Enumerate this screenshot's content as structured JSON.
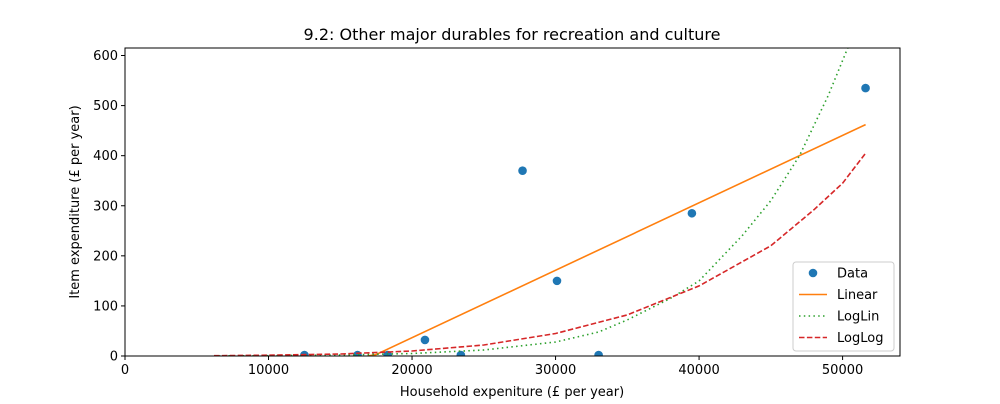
{
  "chart_data": {
    "type": "scatter",
    "title": "9.2: Other major durables for recreation and culture",
    "xlabel": "Household expeniture (£ per year)",
    "ylabel": "Item expenditure (£ per year)",
    "xlim": [
      0,
      54000
    ],
    "ylim": [
      0,
      615
    ],
    "xticks": [
      0,
      10000,
      20000,
      30000,
      40000,
      50000
    ],
    "yticks": [
      0,
      100,
      200,
      300,
      400,
      500,
      600
    ],
    "grid": false,
    "legend_position": "lower-right",
    "series": [
      {
        "name": "Data",
        "kind": "points",
        "color": "#1f77b4",
        "x": [
          12500,
          16200,
          18300,
          20900,
          23400,
          27700,
          30100,
          33000,
          39500,
          51600
        ],
        "y": [
          2,
          2,
          2,
          32,
          2,
          370,
          150,
          2,
          285,
          535
        ]
      },
      {
        "name": "Linear",
        "kind": "line",
        "style": "solid",
        "color": "#ff7f0e",
        "x": [
          16900,
          17500,
          51600
        ],
        "y": [
          0,
          3,
          462
        ]
      },
      {
        "name": "LogLin",
        "kind": "line",
        "style": "dotted",
        "color": "#2ca02c",
        "x": [
          6200,
          10000,
          15000,
          20000,
          25000,
          30000,
          33000,
          35000,
          38000,
          40000,
          43000,
          45000,
          47000,
          49000,
          50000,
          51000
        ],
        "y": [
          0.2,
          0.6,
          2,
          5,
          12,
          28,
          48,
          72,
          115,
          150,
          240,
          310,
          400,
          520,
          590,
          660
        ]
      },
      {
        "name": "LogLog",
        "kind": "line",
        "style": "dashed",
        "color": "#d62728",
        "x": [
          6200,
          10000,
          15000,
          20000,
          25000,
          30000,
          35000,
          40000,
          45000,
          48000,
          50000,
          51600
        ],
        "y": [
          0.5,
          1.5,
          4,
          10,
          22,
          45,
          82,
          140,
          220,
          292,
          345,
          405
        ]
      }
    ]
  }
}
